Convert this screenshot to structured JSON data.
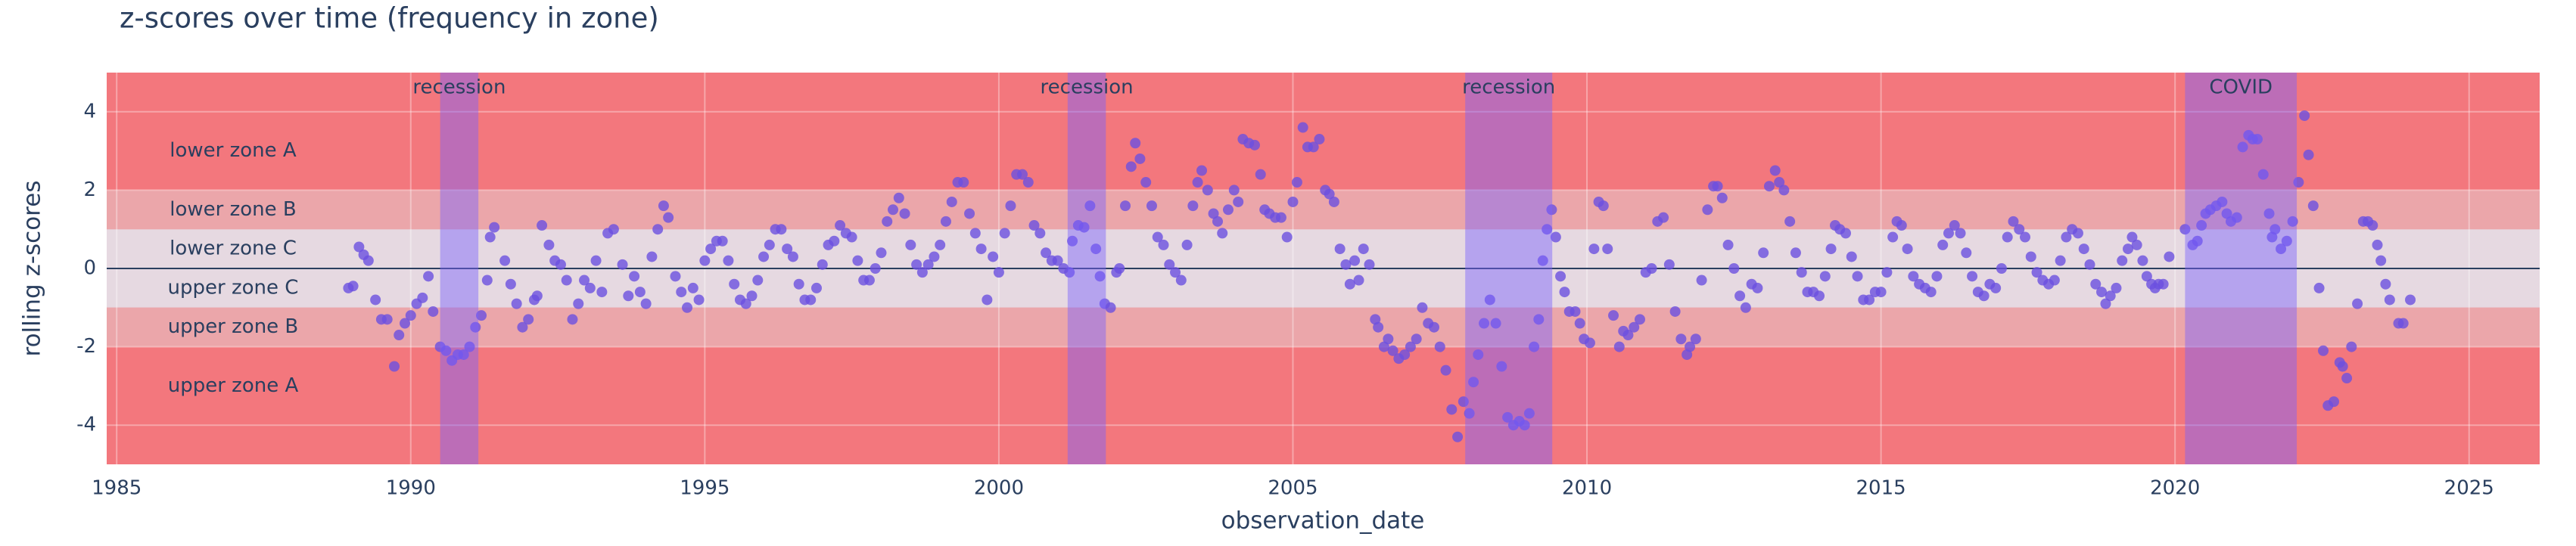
{
  "chart_data": {
    "type": "scatter",
    "title": "z-scores over time (frequency in zone)",
    "x_label": "observation_date",
    "y_label": "rolling z-scores",
    "xlim": [
      1984.83,
      2026.2
    ],
    "xticks": [
      1985,
      1990,
      1995,
      2000,
      2005,
      2010,
      2015,
      2020,
      2025
    ],
    "ylim": [
      -5,
      5
    ],
    "yticks": [
      -4,
      -2,
      0,
      2,
      4
    ],
    "grid": true,
    "zeroline": true,
    "plot_bgcolor": "#f3777d",
    "color": "#6b50e0",
    "marker_opacity": 0.8,
    "bands": [
      {
        "label": "lower zone A",
        "from": 2,
        "to": 4,
        "color": "#f3777d"
      },
      {
        "label": "lower zone B",
        "from": 1,
        "to": 2,
        "color": "#eba6aa"
      },
      {
        "label": "lower zone C",
        "from": 0,
        "to": 1,
        "color": "#e6d9e1"
      },
      {
        "label": "upper zone C",
        "from": -1,
        "to": 0,
        "color": "#e6d9e1"
      },
      {
        "label": "upper zone B",
        "from": -2,
        "to": -1,
        "color": "#eba6aa"
      },
      {
        "label": "upper zone A",
        "from": -4,
        "to": -2,
        "color": "#f3777d"
      }
    ],
    "shaded_periods": [
      {
        "label": "recession",
        "from": 1990.5,
        "to": 1991.15,
        "color": "#7b61ff"
      },
      {
        "label": "recession",
        "from": 2001.17,
        "to": 2001.82,
        "color": "#7b61ff"
      },
      {
        "label": "recession",
        "from": 2007.93,
        "to": 2009.41,
        "color": "#7b61ff"
      },
      {
        "label": "COVID",
        "from": 2020.17,
        "to": 2022.07,
        "color": "#7b61ff"
      }
    ],
    "x": [
      1988.94,
      1989.02,
      1989.12,
      1989.2,
      1989.28,
      1989.4,
      1989.5,
      1989.6,
      1989.72,
      1989.8,
      1989.9,
      1990.0,
      1990.1,
      1990.2,
      1990.3,
      1990.38,
      1990.5,
      1990.6,
      1990.7,
      1990.8,
      1990.9,
      1991.0,
      1991.1,
      1991.2,
      1991.3,
      1991.35,
      1991.42,
      1991.6,
      1991.7,
      1991.8,
      1991.9,
      1992.0,
      1992.1,
      1992.15,
      1992.23,
      1992.35,
      1992.45,
      1992.55,
      1992.65,
      1992.75,
      1992.85,
      1992.95,
      1993.05,
      1993.15,
      1993.25,
      1993.35,
      1993.45,
      1993.6,
      1993.7,
      1993.8,
      1993.9,
      1994.0,
      1994.1,
      1994.2,
      1994.3,
      1994.38,
      1994.5,
      1994.6,
      1994.7,
      1994.8,
      1994.9,
      1995.0,
      1995.1,
      1995.2,
      1995.3,
      1995.4,
      1995.5,
      1995.6,
      1995.7,
      1995.8,
      1995.9,
      1996.0,
      1996.1,
      1996.2,
      1996.3,
      1996.4,
      1996.5,
      1996.6,
      1996.7,
      1996.8,
      1996.9,
      1997.0,
      1997.1,
      1997.2,
      1997.3,
      1997.4,
      1997.5,
      1997.6,
      1997.7,
      1997.8,
      1997.9,
      1998.0,
      1998.1,
      1998.2,
      1998.3,
      1998.4,
      1998.5,
      1998.6,
      1998.7,
      1998.8,
      1998.9,
      1999.0,
      1999.1,
      1999.2,
      1999.3,
      1999.4,
      1999.5,
      1999.6,
      1999.7,
      1999.8,
      1999.9,
      2000.0,
      2000.1,
      2000.2,
      2000.3,
      2000.4,
      2000.5,
      2000.6,
      2000.7,
      2000.8,
      2000.9,
      2001.0,
      2001.1,
      2001.2,
      2001.25,
      2001.35,
      2001.45,
      2001.55,
      2001.65,
      2001.72,
      2001.8,
      2001.9,
      2002.0,
      2002.05,
      2002.15,
      2002.25,
      2002.32,
      2002.4,
      2002.5,
      2002.6,
      2002.7,
      2002.8,
      2002.9,
      2003.0,
      2003.1,
      2003.2,
      2003.3,
      2003.38,
      2003.45,
      2003.55,
      2003.65,
      2003.72,
      2003.8,
      2003.9,
      2004.0,
      2004.07,
      2004.15,
      2004.25,
      2004.35,
      2004.45,
      2004.52,
      2004.6,
      2004.7,
      2004.8,
      2004.9,
      2005.0,
      2005.07,
      2005.17,
      2005.25,
      2005.35,
      2005.45,
      2005.55,
      2005.62,
      2005.7,
      2005.8,
      2005.9,
      2005.97,
      2006.05,
      2006.12,
      2006.2,
      2006.3,
      2006.4,
      2006.45,
      2006.55,
      2006.62,
      2006.7,
      2006.8,
      2006.9,
      2007.0,
      2007.1,
      2007.2,
      2007.3,
      2007.4,
      2007.5,
      2007.6,
      2007.7,
      2007.8,
      2007.9,
      2008.0,
      2008.07,
      2008.15,
      2008.25,
      2008.35,
      2008.45,
      2008.55,
      2008.65,
      2008.75,
      2008.85,
      2008.94,
      2009.02,
      2009.1,
      2009.18,
      2009.25,
      2009.32,
      2009.4,
      2009.47,
      2009.55,
      2009.62,
      2009.7,
      2009.8,
      2009.88,
      2009.95,
      2010.05,
      2010.12,
      2010.2,
      2010.28,
      2010.35,
      2010.45,
      2010.55,
      2010.62,
      2010.7,
      2010.8,
      2010.9,
      2011.0,
      2011.1,
      2011.2,
      2011.3,
      2011.4,
      2011.5,
      2011.6,
      2011.7,
      2011.75,
      2011.85,
      2011.95,
      2012.05,
      2012.15,
      2012.22,
      2012.3,
      2012.4,
      2012.5,
      2012.6,
      2012.7,
      2012.8,
      2012.9,
      2013.0,
      2013.1,
      2013.2,
      2013.27,
      2013.35,
      2013.45,
      2013.55,
      2013.65,
      2013.75,
      2013.85,
      2013.95,
      2014.05,
      2014.15,
      2014.22,
      2014.3,
      2014.4,
      2014.5,
      2014.6,
      2014.7,
      2014.8,
      2014.9,
      2015.0,
      2015.1,
      2015.2,
      2015.27,
      2015.35,
      2015.45,
      2015.55,
      2015.65,
      2015.75,
      2015.85,
      2015.95,
      2016.05,
      2016.15,
      2016.25,
      2016.35,
      2016.45,
      2016.55,
      2016.65,
      2016.75,
      2016.85,
      2016.95,
      2017.05,
      2017.15,
      2017.25,
      2017.35,
      2017.45,
      2017.55,
      2017.65,
      2017.75,
      2017.85,
      2017.95,
      2018.05,
      2018.15,
      2018.25,
      2018.35,
      2018.45,
      2018.55,
      2018.65,
      2018.75,
      2018.82,
      2018.9,
      2019.0,
      2019.1,
      2019.2,
      2019.27,
      2019.35,
      2019.45,
      2019.52,
      2019.6,
      2019.66,
      2019.72,
      2019.8,
      2019.9,
      2020.17,
      2020.3,
      2020.38,
      2020.45,
      2020.52,
      2020.6,
      2020.7,
      2020.8,
      2020.88,
      2020.95,
      2021.05,
      2021.15,
      2021.25,
      2021.32,
      2021.4,
      2021.5,
      2021.6,
      2021.65,
      2021.7,
      2021.8,
      2021.9,
      2022.0,
      2022.1,
      2022.2,
      2022.27,
      2022.35,
      2022.45,
      2022.52,
      2022.6,
      2022.7,
      2022.8,
      2022.85,
      2022.92,
      2023.0,
      2023.1,
      2023.2,
      2023.28,
      2023.36,
      2023.44,
      2023.5,
      2023.58,
      2023.65,
      2023.8,
      2023.88,
      2024.0
    ],
    "values": [
      -0.5,
      -0.45,
      0.55,
      0.35,
      0.2,
      -0.8,
      -1.3,
      -1.3,
      -2.5,
      -1.7,
      -1.4,
      -1.2,
      -0.9,
      -0.75,
      -0.2,
      -1.1,
      -2.0,
      -2.1,
      -2.35,
      -2.2,
      -2.2,
      -2.0,
      -1.5,
      -1.2,
      -0.3,
      0.8,
      1.05,
      0.2,
      -0.4,
      -0.9,
      -1.5,
      -1.3,
      -0.8,
      -0.7,
      1.1,
      0.6,
      0.2,
      0.1,
      -0.3,
      -1.3,
      -0.9,
      -0.3,
      -0.5,
      0.2,
      -0.6,
      0.9,
      1.0,
      0.1,
      -0.7,
      -0.2,
      -0.6,
      -0.9,
      0.3,
      1.0,
      1.6,
      1.3,
      -0.2,
      -0.6,
      -1.0,
      -0.5,
      -0.8,
      0.2,
      0.5,
      0.7,
      0.7,
      0.2,
      -0.4,
      -0.8,
      -0.9,
      -0.7,
      -0.3,
      0.3,
      0.6,
      1.0,
      1.0,
      0.5,
      0.3,
      -0.4,
      -0.8,
      -0.8,
      -0.5,
      0.1,
      0.6,
      0.7,
      1.1,
      0.9,
      0.8,
      0.2,
      -0.3,
      -0.3,
      0.0,
      0.4,
      1.2,
      1.5,
      1.8,
      1.4,
      0.6,
      0.1,
      -0.1,
      0.1,
      0.3,
      0.6,
      1.2,
      1.7,
      2.2,
      2.2,
      1.4,
      0.9,
      0.5,
      -0.8,
      0.3,
      -0.1,
      0.9,
      1.6,
      2.4,
      2.4,
      2.2,
      1.1,
      0.9,
      0.4,
      0.2,
      0.2,
      0.0,
      -0.1,
      0.7,
      1.1,
      1.05,
      1.6,
      0.5,
      -0.2,
      -0.9,
      -1.0,
      -0.1,
      0.0,
      1.6,
      2.6,
      3.2,
      2.8,
      2.2,
      1.6,
      0.8,
      0.6,
      0.1,
      -0.1,
      -0.3,
      0.6,
      1.6,
      2.2,
      2.5,
      2.0,
      1.4,
      1.2,
      0.9,
      1.5,
      2.0,
      1.7,
      3.3,
      3.2,
      3.15,
      2.4,
      1.5,
      1.4,
      1.3,
      1.3,
      0.8,
      1.7,
      2.2,
      3.6,
      3.1,
      3.1,
      3.3,
      2.0,
      1.9,
      1.7,
      0.5,
      0.1,
      -0.4,
      0.2,
      -0.3,
      0.5,
      0.1,
      -1.3,
      -1.5,
      -2.0,
      -1.8,
      -2.1,
      -2.3,
      -2.2,
      -2.0,
      -1.8,
      -1.0,
      -1.4,
      -1.5,
      -2.0,
      -2.6,
      -3.6,
      -4.3,
      -3.4,
      -3.7,
      -2.9,
      -2.2,
      -1.4,
      -0.8,
      -1.4,
      -2.5,
      -3.8,
      -4.0,
      -3.9,
      -4.0,
      -3.7,
      -2.0,
      -1.3,
      0.2,
      1.0,
      1.5,
      0.8,
      -0.2,
      -0.6,
      -1.1,
      -1.1,
      -1.4,
      -1.8,
      -1.9,
      0.5,
      1.7,
      1.6,
      0.5,
      -1.2,
      -2.0,
      -1.6,
      -1.7,
      -1.5,
      -1.3,
      -0.1,
      0.0,
      1.2,
      1.3,
      0.1,
      -1.1,
      -1.8,
      -2.2,
      -2.0,
      -1.8,
      -0.3,
      1.5,
      2.1,
      2.1,
      1.8,
      0.6,
      0.0,
      -0.7,
      -1.0,
      -0.4,
      -0.5,
      0.4,
      2.1,
      2.5,
      2.2,
      2.0,
      1.2,
      0.4,
      -0.1,
      -0.6,
      -0.6,
      -0.7,
      -0.2,
      0.5,
      1.1,
      1.0,
      0.9,
      0.3,
      -0.2,
      -0.8,
      -0.8,
      -0.6,
      -0.6,
      -0.1,
      0.8,
      1.2,
      1.1,
      0.5,
      -0.2,
      -0.4,
      -0.5,
      -0.6,
      -0.2,
      0.6,
      0.9,
      1.1,
      0.9,
      0.4,
      -0.2,
      -0.6,
      -0.7,
      -0.4,
      -0.5,
      0.0,
      0.8,
      1.2,
      1.0,
      0.8,
      0.3,
      -0.1,
      -0.3,
      -0.4,
      -0.3,
      0.2,
      0.8,
      1.0,
      0.9,
      0.5,
      0.1,
      -0.4,
      -0.6,
      -0.9,
      -0.7,
      -0.5,
      0.2,
      0.5,
      0.8,
      0.6,
      0.2,
      -0.2,
      -0.4,
      -0.5,
      -0.4,
      -0.4,
      0.3,
      1.0,
      0.6,
      0.7,
      1.1,
      1.4,
      1.5,
      1.6,
      1.7,
      1.4,
      1.2,
      1.3,
      3.1,
      3.4,
      3.3,
      3.3,
      2.4,
      1.4,
      0.8,
      1.0,
      0.5,
      0.7,
      1.2,
      2.2,
      3.9,
      2.9,
      1.6,
      -0.5,
      -2.1,
      -3.5,
      -3.4,
      -2.4,
      -2.5,
      -2.8,
      -2.0,
      -0.9,
      1.2,
      1.2,
      1.1,
      0.6,
      0.2,
      -0.4,
      -0.8,
      -1.4,
      -1.4,
      -0.8
    ]
  }
}
